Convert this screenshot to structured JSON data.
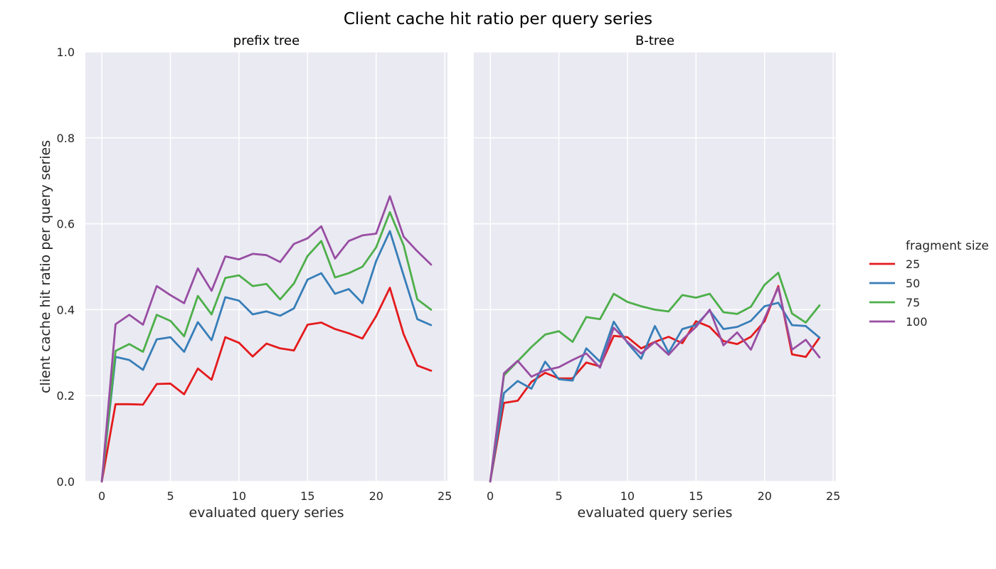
{
  "chart_data": {
    "type": "line",
    "title": "Client cache hit ratio per query series",
    "ylabel": "client cache hit ratio per query series",
    "ylim": [
      0,
      1
    ],
    "yticks": [
      "0.0",
      "0.2",
      "0.4",
      "0.6",
      "0.8",
      "1.0"
    ],
    "xlim": [
      -1.2,
      25.2
    ],
    "xticks": [
      "0",
      "5",
      "10",
      "15",
      "20",
      "25"
    ],
    "grid": true,
    "legend": {
      "title": "fragment size",
      "position": "right",
      "entries": [
        "25",
        "50",
        "75",
        "100"
      ]
    },
    "colors": {
      "25": "#e41a1c",
      "50": "#377eb8",
      "75": "#4daf4a",
      "100": "#984ea3"
    },
    "panels": [
      {
        "title": "prefix tree",
        "xlabel": "evaluated query series",
        "x": [
          0,
          1,
          2,
          3,
          4,
          5,
          6,
          7,
          8,
          9,
          10,
          11,
          12,
          13,
          14,
          15,
          16,
          17,
          18,
          19,
          20,
          21,
          22,
          23,
          24
        ],
        "series": [
          {
            "name": "25",
            "values": [
              0.0,
              0.18,
              0.18,
              0.179,
              0.227,
              0.228,
              0.203,
              0.263,
              0.237,
              0.336,
              0.323,
              0.291,
              0.321,
              0.31,
              0.305,
              0.365,
              0.37,
              0.355,
              0.345,
              0.333,
              0.385,
              0.451,
              0.343,
              0.27,
              0.258
            ]
          },
          {
            "name": "50",
            "values": [
              0.0,
              0.29,
              0.283,
              0.26,
              0.331,
              0.336,
              0.302,
              0.371,
              0.329,
              0.429,
              0.421,
              0.389,
              0.396,
              0.386,
              0.403,
              0.47,
              0.485,
              0.437,
              0.448,
              0.415,
              0.513,
              0.583,
              0.48,
              0.378,
              0.364
            ]
          },
          {
            "name": "75",
            "values": [
              0.0,
              0.304,
              0.32,
              0.302,
              0.388,
              0.374,
              0.338,
              0.432,
              0.389,
              0.474,
              0.48,
              0.455,
              0.46,
              0.424,
              0.461,
              0.525,
              0.56,
              0.475,
              0.485,
              0.5,
              0.545,
              0.627,
              0.55,
              0.424,
              0.4
            ]
          },
          {
            "name": "100",
            "values": [
              0.0,
              0.366,
              0.388,
              0.365,
              0.455,
              0.434,
              0.415,
              0.496,
              0.444,
              0.524,
              0.517,
              0.53,
              0.527,
              0.511,
              0.553,
              0.566,
              0.594,
              0.519,
              0.56,
              0.573,
              0.577,
              0.664,
              0.57,
              0.536,
              0.505
            ]
          }
        ]
      },
      {
        "title": "B-tree",
        "xlabel": "evaluated query series",
        "x": [
          0,
          1,
          2,
          3,
          4,
          5,
          6,
          7,
          8,
          9,
          10,
          11,
          12,
          13,
          14,
          15,
          16,
          17,
          18,
          19,
          20,
          21,
          22,
          23,
          24
        ],
        "series": [
          {
            "name": "25",
            "values": [
              0.0,
              0.183,
              0.188,
              0.232,
              0.253,
              0.24,
              0.24,
              0.277,
              0.268,
              0.339,
              0.336,
              0.31,
              0.325,
              0.337,
              0.322,
              0.373,
              0.36,
              0.327,
              0.32,
              0.337,
              0.373,
              0.455,
              0.296,
              0.29,
              0.335
            ]
          },
          {
            "name": "50",
            "values": [
              0.0,
              0.206,
              0.234,
              0.216,
              0.279,
              0.238,
              0.235,
              0.31,
              0.279,
              0.372,
              0.323,
              0.286,
              0.362,
              0.3,
              0.355,
              0.364,
              0.398,
              0.355,
              0.36,
              0.374,
              0.408,
              0.416,
              0.364,
              0.362,
              0.335
            ]
          },
          {
            "name": "75",
            "values": [
              0.0,
              0.247,
              0.28,
              0.313,
              0.342,
              0.35,
              0.325,
              0.383,
              0.378,
              0.437,
              0.418,
              0.408,
              0.4,
              0.396,
              0.434,
              0.428,
              0.437,
              0.394,
              0.39,
              0.407,
              0.458,
              0.486,
              0.391,
              0.37,
              0.41
            ]
          },
          {
            "name": "100",
            "values": [
              0.0,
              0.252,
              0.281,
              0.244,
              0.259,
              0.266,
              0.283,
              0.298,
              0.265,
              0.358,
              0.325,
              0.298,
              0.325,
              0.295,
              0.33,
              0.36,
              0.4,
              0.317,
              0.347,
              0.307,
              0.38,
              0.452,
              0.307,
              0.33,
              0.289
            ]
          }
        ]
      }
    ]
  }
}
